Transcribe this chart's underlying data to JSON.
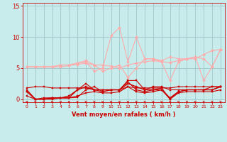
{
  "title": "",
  "xlabel": "Vent moyen/en rafales ( km/h )",
  "ylabel": "",
  "bg_color": "#c8ecec",
  "grid_color": "#a0c8c8",
  "x_ticks": [
    0,
    1,
    2,
    3,
    4,
    5,
    6,
    7,
    8,
    9,
    10,
    11,
    12,
    13,
    14,
    15,
    16,
    17,
    18,
    19,
    20,
    21,
    22,
    23
  ],
  "ylim": [
    -0.5,
    15.5
  ],
  "xlim": [
    -0.5,
    23.5
  ],
  "yticks": [
    0,
    5,
    10,
    15
  ],
  "series": [
    {
      "color": "#ffaaaa",
      "linewidth": 0.8,
      "marker": "D",
      "markersize": 2.0,
      "values": [
        5.2,
        5.2,
        5.2,
        5.2,
        5.2,
        5.4,
        5.6,
        5.8,
        5.5,
        5.5,
        5.3,
        5.0,
        5.5,
        5.8,
        6.0,
        6.2,
        6.0,
        5.9,
        6.2,
        6.5,
        6.5,
        7.2,
        7.8,
        8.0
      ]
    },
    {
      "color": "#ffaaaa",
      "linewidth": 0.8,
      "marker": "D",
      "markersize": 2.0,
      "values": [
        5.2,
        5.2,
        5.2,
        5.2,
        5.5,
        5.5,
        5.8,
        6.0,
        4.5,
        5.0,
        10.2,
        11.5,
        6.0,
        10.0,
        6.5,
        6.5,
        6.2,
        6.8,
        6.5,
        6.5,
        6.8,
        6.5,
        5.2,
        8.0
      ]
    },
    {
      "color": "#ffaaaa",
      "linewidth": 0.8,
      "marker": "D",
      "markersize": 2.0,
      "values": [
        5.2,
        5.2,
        5.2,
        5.2,
        5.5,
        5.5,
        5.8,
        6.2,
        5.5,
        4.5,
        5.0,
        5.5,
        3.5,
        5.0,
        6.5,
        6.5,
        6.0,
        3.0,
        6.0,
        6.5,
        6.8,
        3.0,
        5.2,
        8.0
      ]
    },
    {
      "color": "#cc0000",
      "linewidth": 0.8,
      "marker": "s",
      "markersize": 1.8,
      "values": [
        1.2,
        0.0,
        0.2,
        0.2,
        0.2,
        0.2,
        0.3,
        1.5,
        2.0,
        1.2,
        1.5,
        1.5,
        3.0,
        3.0,
        1.5,
        2.0,
        2.0,
        1.5,
        1.5,
        1.5,
        1.5,
        1.5,
        2.0,
        2.0
      ]
    },
    {
      "color": "#cc0000",
      "linewidth": 0.8,
      "marker": "s",
      "markersize": 1.8,
      "values": [
        1.8,
        2.0,
        2.0,
        1.8,
        1.8,
        1.8,
        1.8,
        1.8,
        1.5,
        1.5,
        1.5,
        1.5,
        2.0,
        1.8,
        1.8,
        1.8,
        1.8,
        1.8,
        2.0,
        2.0,
        2.0,
        2.0,
        2.0,
        2.0
      ]
    },
    {
      "color": "#cc0000",
      "linewidth": 0.8,
      "marker": "s",
      "markersize": 1.8,
      "values": [
        1.5,
        0.0,
        0.0,
        0.2,
        0.2,
        0.2,
        1.5,
        2.5,
        1.5,
        1.2,
        1.5,
        1.5,
        2.8,
        1.5,
        1.2,
        1.5,
        1.8,
        0.0,
        1.2,
        1.5,
        1.5,
        1.5,
        1.5,
        2.0
      ]
    },
    {
      "color": "#cc0000",
      "linewidth": 0.8,
      "marker": "s",
      "markersize": 1.8,
      "values": [
        0.5,
        0.0,
        0.0,
        0.0,
        0.2,
        0.2,
        0.5,
        1.0,
        1.2,
        1.0,
        1.0,
        1.2,
        2.0,
        1.2,
        1.0,
        1.2,
        1.5,
        0.0,
        1.0,
        1.2,
        1.2,
        1.2,
        1.2,
        1.5
      ]
    },
    {
      "color": "#cc0000",
      "linewidth": 1.0,
      "marker": "s",
      "markersize": 1.8,
      "values": [
        1.2,
        0.0,
        0.0,
        0.2,
        0.2,
        0.5,
        1.5,
        2.0,
        1.5,
        1.5,
        1.5,
        1.5,
        2.5,
        2.0,
        1.5,
        1.5,
        1.5,
        0.2,
        1.2,
        1.5,
        1.5,
        1.5,
        1.5,
        2.0
      ]
    }
  ],
  "tick_label_color": "#cc0000",
  "axis_label_color": "#cc0000",
  "tick_color": "#cc0000"
}
